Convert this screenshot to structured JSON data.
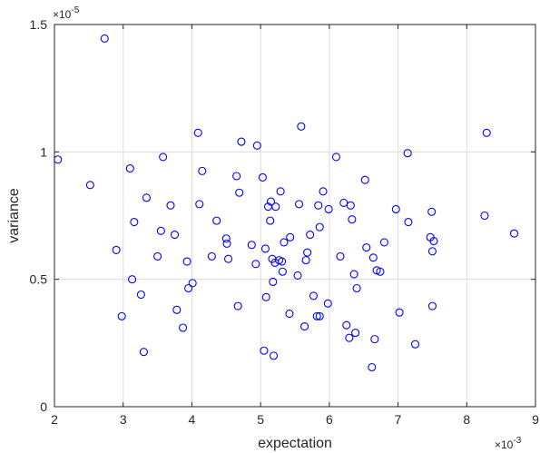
{
  "chart_data": {
    "type": "scatter",
    "title": "",
    "xlabel": "expectation",
    "ylabel": "variance",
    "x_exponent_label": "×10",
    "x_exponent_power": "-3",
    "y_exponent_label": "×10",
    "y_exponent_power": "-5",
    "xlim": [
      0.002,
      0.009
    ],
    "ylim": [
      0,
      1.5e-05
    ],
    "x_ticks": [
      0.002,
      0.003,
      0.004,
      0.005,
      0.006,
      0.007,
      0.008,
      0.009
    ],
    "x_tick_labels": [
      "2",
      "3",
      "4",
      "5",
      "6",
      "7",
      "8",
      "9"
    ],
    "y_ticks": [
      0,
      5e-06,
      1e-05,
      1.5e-05
    ],
    "y_tick_labels": [
      "0",
      "0.5",
      "1",
      "1.5"
    ],
    "grid": true,
    "marker": "circle-open",
    "marker_color": "#0000ff",
    "points": [
      [
        0.00205,
        9.7e-06
      ],
      [
        0.00252,
        8.7e-06
      ],
      [
        0.00273,
        1.445e-05
      ],
      [
        0.0029,
        6.15e-06
      ],
      [
        0.00298,
        3.55e-06
      ],
      [
        0.0031,
        9.35e-06
      ],
      [
        0.00313,
        5e-06
      ],
      [
        0.00316,
        7.25e-06
      ],
      [
        0.00326,
        4.4e-06
      ],
      [
        0.0033,
        2.15e-06
      ],
      [
        0.00334,
        8.2e-06
      ],
      [
        0.0035,
        5.9e-06
      ],
      [
        0.00355,
        6.9e-06
      ],
      [
        0.00358,
        9.8e-06
      ],
      [
        0.00369,
        7.9e-06
      ],
      [
        0.00375,
        6.75e-06
      ],
      [
        0.00378,
        3.8e-06
      ],
      [
        0.00387,
        3.1e-06
      ],
      [
        0.00393,
        5.7e-06
      ],
      [
        0.00395,
        4.65e-06
      ],
      [
        0.00401,
        4.85e-06
      ],
      [
        0.00409,
        1.075e-05
      ],
      [
        0.00411,
        7.95e-06
      ],
      [
        0.00415,
        9.25e-06
      ],
      [
        0.00429,
        5.9e-06
      ],
      [
        0.00436,
        7.3e-06
      ],
      [
        0.0045,
        6.6e-06
      ],
      [
        0.00451,
        6.4e-06
      ],
      [
        0.00453,
        5.8e-06
      ],
      [
        0.00465,
        9.05e-06
      ],
      [
        0.00467,
        3.95e-06
      ],
      [
        0.00469,
        8.4e-06
      ],
      [
        0.00472,
        1.04e-05
      ],
      [
        0.00487,
        6.35e-06
      ],
      [
        0.00493,
        5.6e-06
      ],
      [
        0.00495,
        1.025e-05
      ],
      [
        0.00503,
        9e-06
      ],
      [
        0.00505,
        2.2e-06
      ],
      [
        0.00507,
        6.2e-06
      ],
      [
        0.00508,
        4.3e-06
      ],
      [
        0.00511,
        7.85e-06
      ],
      [
        0.00514,
        7.3e-06
      ],
      [
        0.00515,
        8.05e-06
      ],
      [
        0.00517,
        5.8e-06
      ],
      [
        0.00518,
        4.9e-06
      ],
      [
        0.00519,
        2e-06
      ],
      [
        0.00521,
        5.65e-06
      ],
      [
        0.00522,
        7.85e-06
      ],
      [
        0.00527,
        5.75e-06
      ],
      [
        0.00529,
        8.45e-06
      ],
      [
        0.00531,
        5.7e-06
      ],
      [
        0.00532,
        5.3e-06
      ],
      [
        0.00534,
        6.45e-06
      ],
      [
        0.00542,
        3.65e-06
      ],
      [
        0.00543,
        6.65e-06
      ],
      [
        0.00554,
        5.15e-06
      ],
      [
        0.00556,
        7.95e-06
      ],
      [
        0.00559,
        1.1e-05
      ],
      [
        0.00564,
        3.15e-06
      ],
      [
        0.00566,
        5.75e-06
      ],
      [
        0.00568,
        6.05e-06
      ],
      [
        0.00572,
        6.75e-06
      ],
      [
        0.00577,
        4.35e-06
      ],
      [
        0.00582,
        3.55e-06
      ],
      [
        0.00584,
        7.9e-06
      ],
      [
        0.00586,
        7.05e-06
      ],
      [
        0.00586,
        3.55e-06
      ],
      [
        0.00591,
        8.45e-06
      ],
      [
        0.00598,
        4.05e-06
      ],
      [
        0.00599,
        7.75e-06
      ],
      [
        0.0061,
        9.8e-06
      ],
      [
        0.00616,
        5.9e-06
      ],
      [
        0.00621,
        8e-06
      ],
      [
        0.00625,
        3.2e-06
      ],
      [
        0.00629,
        2.7e-06
      ],
      [
        0.00631,
        7.9e-06
      ],
      [
        0.00633,
        7.35e-06
      ],
      [
        0.00636,
        5.2e-06
      ],
      [
        0.00638,
        2.9e-06
      ],
      [
        0.0064,
        4.65e-06
      ],
      [
        0.00652,
        8.9e-06
      ],
      [
        0.00654,
        6.25e-06
      ],
      [
        0.00662,
        1.55e-06
      ],
      [
        0.00664,
        5.85e-06
      ],
      [
        0.00666,
        2.65e-06
      ],
      [
        0.00669,
        5.35e-06
      ],
      [
        0.00674,
        5.3e-06
      ],
      [
        0.0068,
        6.45e-06
      ],
      [
        0.00697,
        7.75e-06
      ],
      [
        0.00702,
        3.7e-06
      ],
      [
        0.00714,
        9.95e-06
      ],
      [
        0.00715,
        7.25e-06
      ],
      [
        0.00725,
        2.45e-06
      ],
      [
        0.00747,
        6.65e-06
      ],
      [
        0.00749,
        7.65e-06
      ],
      [
        0.0075,
        6.1e-06
      ],
      [
        0.0075,
        3.95e-06
      ],
      [
        0.00752,
        6.5e-06
      ],
      [
        0.00826,
        7.5e-06
      ],
      [
        0.00829,
        1.075e-05
      ],
      [
        0.00869,
        6.8e-06
      ]
    ]
  }
}
